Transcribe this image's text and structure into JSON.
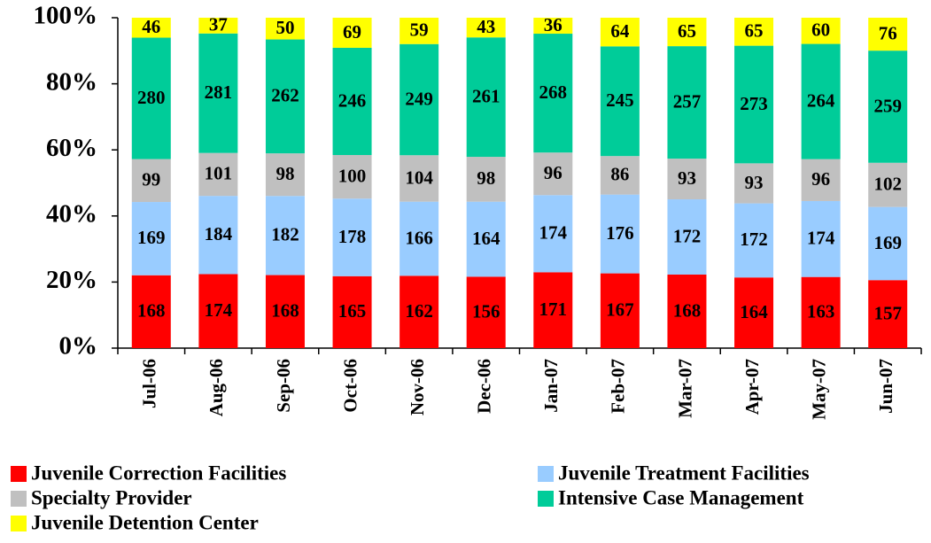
{
  "chart_data": {
    "type": "bar",
    "stacked": "percent",
    "categories": [
      "Jul-06",
      "Aug-06",
      "Sep-06",
      "Oct-06",
      "Nov-06",
      "Dec-06",
      "Jan-07",
      "Feb-07",
      "Mar-07",
      "Apr-07",
      "May-07",
      "Jun-07"
    ],
    "series": [
      {
        "name": "Juvenile Correction Facilities",
        "color": "#ff0000",
        "values": [
          168,
          174,
          168,
          165,
          162,
          156,
          171,
          167,
          168,
          164,
          163,
          157
        ]
      },
      {
        "name": "Juvenile Treatment Facilities",
        "color": "#99ccff",
        "values": [
          169,
          184,
          182,
          178,
          166,
          164,
          174,
          176,
          172,
          172,
          174,
          169
        ]
      },
      {
        "name": "Specialty Provider",
        "color": "#c0c0c0",
        "values": [
          99,
          101,
          98,
          100,
          104,
          98,
          96,
          86,
          93,
          93,
          96,
          102
        ]
      },
      {
        "name": "Intensive Case Management",
        "color": "#00cc99",
        "values": [
          280,
          281,
          262,
          246,
          249,
          261,
          268,
          245,
          257,
          273,
          264,
          259
        ]
      },
      {
        "name": "Juvenile Detention Center",
        "color": "#ffff00",
        "values": [
          46,
          37,
          50,
          69,
          59,
          43,
          36,
          64,
          65,
          65,
          60,
          76
        ]
      }
    ],
    "ylim": [
      0,
      100
    ],
    "yticks": [
      {
        "value": 0,
        "label": "0%"
      },
      {
        "value": 20,
        "label": "20%"
      },
      {
        "value": 40,
        "label": "40%"
      },
      {
        "value": 60,
        "label": "60%"
      },
      {
        "value": 80,
        "label": "80%"
      },
      {
        "value": 100,
        "label": "100%"
      }
    ],
    "legend": "bottom"
  }
}
